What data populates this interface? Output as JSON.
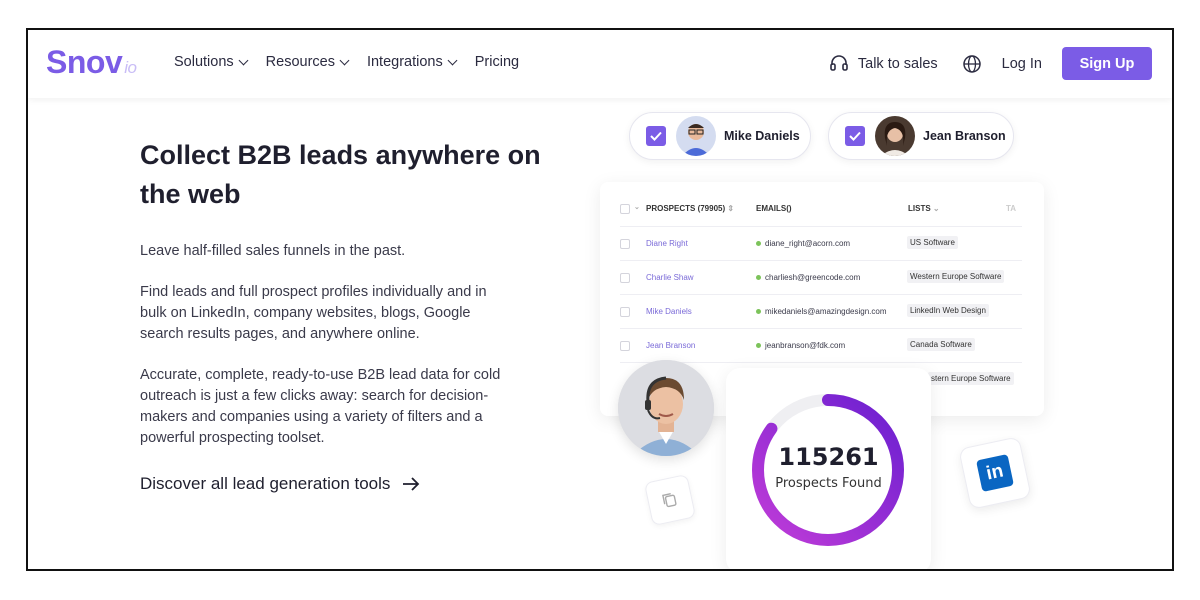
{
  "header": {
    "logo": "Snov",
    "logo_suffix": "io",
    "nav": [
      "Solutions",
      "Resources",
      "Integrations",
      "Pricing"
    ],
    "talk_to_sales": "Talk to sales",
    "login": "Log In",
    "signup": "Sign Up",
    "accent_color": "#7b5ce6"
  },
  "hero": {
    "headline": "Collect B2B leads anywhere on the web",
    "paragraphs": [
      "Leave half-filled sales funnels in the past.",
      "Find leads and full prospect profiles individually and in bulk on LinkedIn, company websites, blogs, Google search results pages, and anywhere online.",
      "Accurate, complete, ready-to-use B2B lead data for cold outreach is just a few clicks away: search for decision-makers and companies using a variety of filters and a powerful prospecting toolset."
    ],
    "cta": "Discover all lead generation tools"
  },
  "chips": [
    "Mike Daniels",
    "Jean Branson"
  ],
  "table": {
    "columns": [
      "PROSPECTS (79905)",
      "EMAILS()",
      "LISTS",
      "TA"
    ],
    "rows": [
      {
        "name": "Diane Right",
        "email": "diane_right@acorn.com",
        "list": "US Software"
      },
      {
        "name": "Charlie Shaw",
        "email": "charliesh@greencode.com",
        "list": "Western Europe Software"
      },
      {
        "name": "Mike Daniels",
        "email": "mikedaniels@amazingdesign.com",
        "list": "LinkedIn Web Design"
      },
      {
        "name": "Jean Branson",
        "email": "jeanbranson@fdk.com",
        "list": "Canada Software"
      },
      {
        "name": "",
        "email": "",
        "list": "stern Europe Software"
      }
    ]
  },
  "stat": {
    "value": "115261",
    "label": "Prospects Found",
    "progress": 0.85
  }
}
